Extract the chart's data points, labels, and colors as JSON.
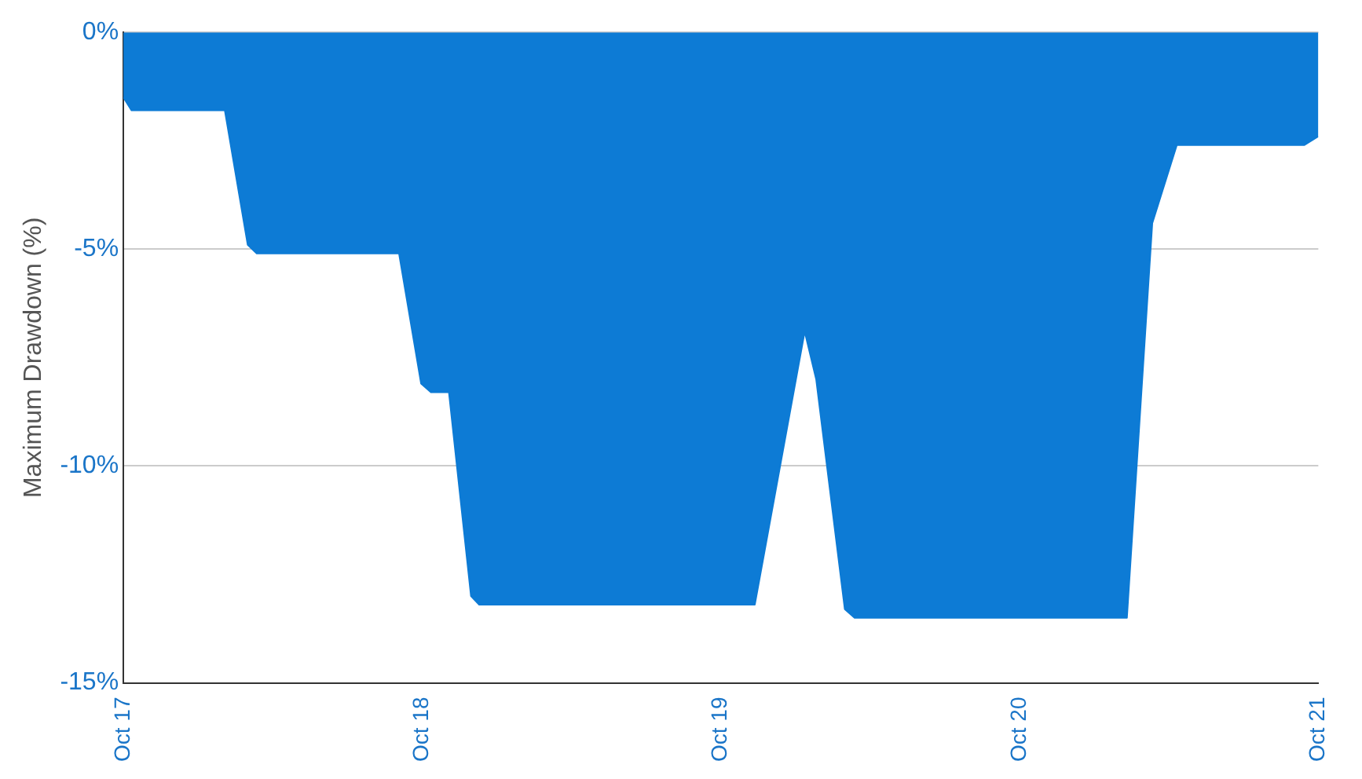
{
  "chart_data": {
    "type": "area",
    "ylabel": "Maximum Drawdown (%)",
    "x": [
      "2017-10-01",
      "2017-10-11",
      "2018-02-02",
      "2018-03-02",
      "2018-03-13",
      "2018-09-03",
      "2018-09-30",
      "2018-10-12",
      "2018-11-03",
      "2018-11-30",
      "2018-12-10",
      "2019-11-12",
      "2020-01-12",
      "2020-01-26",
      "2020-03-01",
      "2020-03-13",
      "2021-02-09",
      "2021-03-12",
      "2021-04-11",
      "2021-09-14",
      "2021-10-01"
    ],
    "series": [
      {
        "color": "#0d7bd5",
        "values": [
          -1.5,
          -1.8,
          -1.8,
          -4.9,
          -5.1,
          -5.1,
          -8.1,
          -8.3,
          -8.3,
          -13.0,
          -13.2,
          -13.2,
          -6.9,
          -8.0,
          -13.3,
          -13.5,
          -13.5,
          -4.4,
          -2.6,
          -2.6,
          -2.4
        ]
      }
    ],
    "xlim": [
      "2017-10-01",
      "2021-10-01"
    ],
    "xticks": [
      {
        "value": "2017-10",
        "label": "Oct 17"
      },
      {
        "value": "2018-10",
        "label": "Oct 18"
      },
      {
        "value": "2019-10",
        "label": "Oct 19"
      },
      {
        "value": "2020-10",
        "label": "Oct 20"
      },
      {
        "value": "2021-10",
        "label": "Oct 21"
      }
    ],
    "ylim": [
      -15,
      0
    ],
    "yticks": [
      {
        "value": 0,
        "label": "0%"
      },
      {
        "value": -5,
        "label": "-5%"
      },
      {
        "value": -10,
        "label": "-10%"
      },
      {
        "value": -15,
        "label": "-15%"
      }
    ],
    "grid": "y",
    "legend": false,
    "marker": "none"
  }
}
